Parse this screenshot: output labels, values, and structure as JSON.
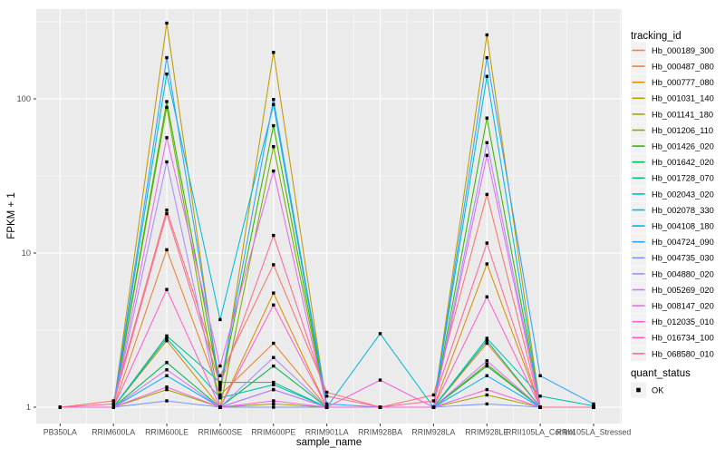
{
  "figure": {
    "background": "#FFFFFF",
    "panel_background": "#EBEBEB",
    "gridline_color": "#FFFFFF",
    "tick_text_color": "#4D4D4D",
    "tick_mark_color": "#333333",
    "title_text_color": "#000000",
    "point_color": "#000000",
    "legend_key_background": "#F2F2F2"
  },
  "chart_data": {
    "type": "line",
    "title": "",
    "xlabel": "sample_name",
    "ylabel": "FPKM + 1",
    "y_scale": "log10",
    "y_ticks": [
      1,
      10,
      100
    ],
    "y_minor_ticks": [
      3.162,
      31.62,
      316.2
    ],
    "ylim": [
      0.95,
      420
    ],
    "grid": true,
    "legend_position": "right",
    "point_shape": "filled-square",
    "categories": [
      "PB350LA",
      "RRIM600LA",
      "RRIM600LE",
      "RRIM600SE",
      "RRIM600PE",
      "RRIM901LA",
      "RRIM928BA",
      "RRIM928LA",
      "RRIM928LE",
      "RRII105LA_Control",
      "RRII105LA_Stressed"
    ],
    "series": [
      {
        "name": "Hb_000189_300",
        "color": "#F8766D",
        "values": [
          1,
          1.1,
          19,
          1.6,
          8.4,
          1.25,
          1,
          1.2,
          24,
          1,
          1
        ]
      },
      {
        "name": "Hb_000487_080",
        "color": "#EA8331",
        "values": [
          1,
          1,
          10.5,
          1.2,
          2.6,
          1,
          1,
          1,
          2.6,
          1,
          1
        ]
      },
      {
        "name": "Hb_000777_080",
        "color": "#D89000",
        "values": [
          1,
          1,
          2.7,
          1,
          5.5,
          1,
          1,
          1,
          8.5,
          1,
          1
        ]
      },
      {
        "name": "Hb_001031_140",
        "color": "#C09B00",
        "values": [
          1,
          1,
          310,
          1.2,
          200,
          1,
          1,
          1,
          260,
          1,
          1
        ]
      },
      {
        "name": "Hb_001141_180",
        "color": "#A3A500",
        "values": [
          1,
          1,
          1.3,
          1,
          1.05,
          1,
          1,
          1,
          1.2,
          1,
          1
        ]
      },
      {
        "name": "Hb_001206_110",
        "color": "#7CAE00",
        "values": [
          1,
          1,
          88,
          1,
          49,
          1,
          1,
          1,
          1.9,
          1,
          1
        ]
      },
      {
        "name": "Hb_001426_020",
        "color": "#39B600",
        "values": [
          1,
          1,
          96,
          1.3,
          67,
          1,
          1,
          1,
          75,
          1,
          1
        ]
      },
      {
        "name": "Hb_001642_020",
        "color": "#00BB4E",
        "values": [
          1,
          1,
          1.95,
          1,
          1.85,
          1,
          1,
          1,
          1.85,
          1,
          1
        ]
      },
      {
        "name": "Hb_001728_070",
        "color": "#00C087",
        "values": [
          1,
          1,
          2.9,
          1.45,
          1.45,
          1,
          1,
          1,
          2.7,
          1,
          1
        ]
      },
      {
        "name": "Hb_002043_020",
        "color": "#00C0B2",
        "values": [
          1,
          1,
          2.8,
          1.15,
          1.4,
          1,
          1,
          1,
          2.8,
          1.18,
          1.02
        ]
      },
      {
        "name": "Hb_002078_330",
        "color": "#00BCD8",
        "values": [
          1,
          1,
          145,
          3.7,
          92,
          1,
          3,
          1,
          140,
          1,
          1
        ]
      },
      {
        "name": "Hb_004108_180",
        "color": "#00B0F6",
        "values": [
          1,
          1,
          1.6,
          1,
          1.3,
          1,
          1,
          1,
          1.6,
          1,
          1
        ]
      },
      {
        "name": "Hb_004724_090",
        "color": "#2FA4FF",
        "values": [
          1,
          1,
          185,
          1.35,
          99,
          1.05,
          1,
          1,
          185,
          1.6,
          1.05
        ]
      },
      {
        "name": "Hb_004735_030",
        "color": "#7E96FF",
        "values": [
          1,
          1,
          1.1,
          1,
          1,
          1,
          1,
          1,
          1.05,
          1,
          1
        ]
      },
      {
        "name": "Hb_004880_020",
        "color": "#A98CFF",
        "values": [
          1,
          1,
          39,
          1,
          2.1,
          1,
          1,
          1,
          52,
          1,
          1
        ]
      },
      {
        "name": "Hb_005269_020",
        "color": "#CF78FF",
        "values": [
          1,
          1,
          1.75,
          1,
          1.3,
          1,
          1,
          1,
          2,
          1,
          1
        ]
      },
      {
        "name": "Hb_008147_020",
        "color": "#E76BF3",
        "values": [
          1,
          1,
          56,
          1.85,
          34,
          1,
          1,
          1,
          43,
          1,
          1
        ]
      },
      {
        "name": "Hb_012035_010",
        "color": "#F763E0",
        "values": [
          1,
          1,
          1.35,
          1,
          1.1,
          1,
          1.5,
          1,
          1.3,
          1,
          1
        ]
      },
      {
        "name": "Hb_016734_100",
        "color": "#FF61CC",
        "values": [
          1,
          1,
          5.8,
          1,
          4.6,
          1,
          1,
          1,
          5.2,
          1,
          1
        ]
      },
      {
        "name": "Hb_068580_010",
        "color": "#FF6A98",
        "values": [
          1,
          1.05,
          18,
          1.4,
          13,
          1.18,
          1,
          1.1,
          11.6,
          1,
          1
        ]
      }
    ],
    "legends": {
      "tracking": {
        "title": "tracking_id"
      },
      "quant": {
        "title": "quant_status",
        "items": [
          {
            "label": "OK",
            "shape": "filled-square",
            "color": "#000000"
          }
        ]
      }
    }
  }
}
